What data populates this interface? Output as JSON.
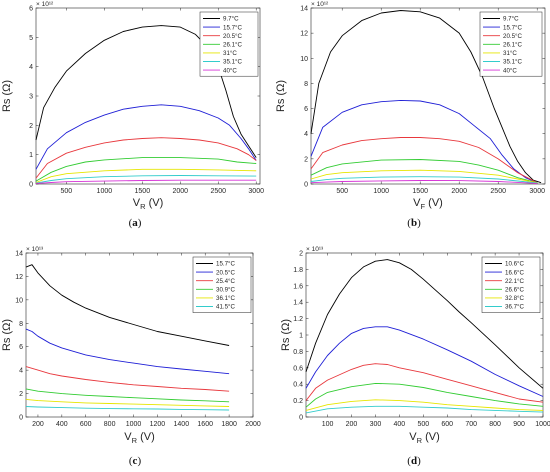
{
  "chart_data": [
    {
      "panel": "a",
      "type": "line",
      "caption": "(a)",
      "title": "",
      "xlabel": "V",
      "xlabel_sub": "R",
      "xlabel_unit": " (V)",
      "ylabel": "Rs (Ω)",
      "y_multiplier": "× 10¹²",
      "xlim": [
        100,
        3050
      ],
      "ylim": [
        0,
        6
      ],
      "xticks": [
        500,
        1000,
        1500,
        2000,
        2500,
        3000
      ],
      "yticks": [
        0,
        1,
        2,
        3,
        4,
        5,
        6
      ],
      "grid": false,
      "legend_position": "top-right",
      "series": [
        {
          "name": "9.7°C",
          "color": "#000000",
          "x": [
            100,
            200,
            350,
            500,
            750,
            1000,
            1250,
            1500,
            1750,
            2000,
            2200,
            2350,
            2500,
            2600,
            2700,
            2800,
            2900,
            3000
          ],
          "y": [
            1.5,
            2.6,
            3.3,
            3.85,
            4.45,
            4.9,
            5.2,
            5.35,
            5.4,
            5.35,
            5.1,
            4.7,
            4.0,
            3.2,
            2.3,
            1.7,
            1.3,
            0.9
          ]
        },
        {
          "name": "15.7°C",
          "color": "#1f1fd6",
          "x": [
            100,
            250,
            500,
            750,
            1000,
            1250,
            1500,
            1750,
            2000,
            2250,
            2500,
            2650,
            2800,
            2900,
            3000
          ],
          "y": [
            0.5,
            1.2,
            1.75,
            2.1,
            2.35,
            2.55,
            2.65,
            2.7,
            2.65,
            2.5,
            2.25,
            2.0,
            1.55,
            1.2,
            0.8
          ]
        },
        {
          "name": "20.5°C",
          "color": "#e8383d",
          "x": [
            100,
            250,
            500,
            750,
            1000,
            1250,
            1500,
            1750,
            2000,
            2250,
            2500,
            2750,
            2900,
            3000
          ],
          "y": [
            0.2,
            0.7,
            1.05,
            1.25,
            1.4,
            1.5,
            1.55,
            1.58,
            1.55,
            1.5,
            1.4,
            1.2,
            1.0,
            0.8
          ]
        },
        {
          "name": "26.1°C",
          "color": "#33cc33",
          "x": [
            100,
            300,
            500,
            750,
            1000,
            1500,
            2000,
            2500,
            2750,
            3000
          ],
          "y": [
            0.1,
            0.4,
            0.6,
            0.75,
            0.82,
            0.9,
            0.9,
            0.85,
            0.75,
            0.7
          ]
        },
        {
          "name": "31°C",
          "color": "#e6e600",
          "x": [
            100,
            300,
            500,
            1000,
            1500,
            2000,
            2500,
            3000
          ],
          "y": [
            0.05,
            0.25,
            0.35,
            0.45,
            0.5,
            0.5,
            0.48,
            0.45
          ]
        },
        {
          "name": "35.1°C",
          "color": "#33cccc",
          "x": [
            100,
            300,
            500,
            1000,
            1500,
            2000,
            2500,
            3000
          ],
          "y": [
            0.03,
            0.12,
            0.18,
            0.25,
            0.28,
            0.29,
            0.28,
            0.27
          ]
        },
        {
          "name": "40°C",
          "color": "#d633d6",
          "x": [
            100,
            300,
            500,
            1000,
            1500,
            2000,
            2500,
            3000
          ],
          "y": [
            0.02,
            0.05,
            0.08,
            0.1,
            0.12,
            0.13,
            0.13,
            0.13
          ]
        }
      ]
    },
    {
      "panel": "b",
      "type": "line",
      "caption": "(b)",
      "title": "",
      "xlabel": "V",
      "xlabel_sub": "F",
      "xlabel_unit": " (V)",
      "ylabel": "Rs (Ω)",
      "y_multiplier": "× 10¹²",
      "xlim": [
        100,
        3100
      ],
      "ylim": [
        0,
        14
      ],
      "xticks": [
        500,
        1000,
        1500,
        2000,
        2500,
        3000
      ],
      "yticks": [
        0,
        2,
        4,
        6,
        8,
        10,
        12,
        14
      ],
      "grid": false,
      "legend_position": "top-right",
      "series": [
        {
          "name": "9.7°C",
          "color": "#000000",
          "x": [
            100,
            200,
            350,
            500,
            750,
            1000,
            1250,
            1500,
            1750,
            2000,
            2150,
            2300,
            2450,
            2550,
            2650,
            2750,
            2850,
            2950,
            3050
          ],
          "y": [
            4.0,
            8.0,
            10.5,
            11.8,
            13.0,
            13.6,
            13.8,
            13.7,
            13.2,
            12.0,
            10.5,
            8.5,
            6.0,
            4.5,
            3.0,
            1.8,
            0.9,
            0.3,
            0.1
          ]
        },
        {
          "name": "15.7°C",
          "color": "#1f1fd6",
          "x": [
            100,
            250,
            500,
            750,
            1000,
            1250,
            1500,
            1750,
            2000,
            2200,
            2400,
            2550,
            2700,
            2850,
            3000
          ],
          "y": [
            2.2,
            4.5,
            5.7,
            6.3,
            6.55,
            6.65,
            6.6,
            6.3,
            5.6,
            4.6,
            3.6,
            2.3,
            1.2,
            0.5,
            0.1
          ]
        },
        {
          "name": "20.5°C",
          "color": "#e8383d",
          "x": [
            100,
            250,
            500,
            750,
            1000,
            1250,
            1500,
            1750,
            2000,
            2250,
            2500,
            2750,
            3000
          ],
          "y": [
            1.2,
            2.5,
            3.1,
            3.45,
            3.6,
            3.7,
            3.7,
            3.6,
            3.4,
            2.9,
            2.0,
            0.9,
            0.1
          ]
        },
        {
          "name": "26.1°C",
          "color": "#33cc33",
          "x": [
            100,
            300,
            500,
            1000,
            1500,
            2000,
            2250,
            2500,
            2750,
            3000
          ],
          "y": [
            0.7,
            1.3,
            1.6,
            1.9,
            1.95,
            1.8,
            1.5,
            1.1,
            0.5,
            0.1
          ]
        },
        {
          "name": "31°C",
          "color": "#e6e600",
          "x": [
            100,
            300,
            500,
            1000,
            1500,
            2000,
            2500,
            2750,
            3000
          ],
          "y": [
            0.4,
            0.75,
            0.9,
            1.05,
            1.1,
            1.0,
            0.7,
            0.4,
            0.1
          ]
        },
        {
          "name": "35.1°C",
          "color": "#33cccc",
          "x": [
            100,
            300,
            500,
            1000,
            1500,
            2000,
            2500,
            3000
          ],
          "y": [
            0.2,
            0.35,
            0.45,
            0.55,
            0.58,
            0.55,
            0.4,
            0.08
          ]
        },
        {
          "name": "40°C",
          "color": "#d633d6",
          "x": [
            100,
            300,
            500,
            1000,
            1500,
            2000,
            2500,
            3000
          ],
          "y": [
            0.1,
            0.15,
            0.2,
            0.25,
            0.28,
            0.27,
            0.2,
            0.05
          ]
        }
      ]
    },
    {
      "panel": "c",
      "type": "line",
      "caption": "(c)",
      "title": "",
      "xlabel": "V",
      "xlabel_sub": "R",
      "xlabel_unit": " (V)",
      "ylabel": "Rs (Ω)",
      "y_multiplier": "× 10¹³",
      "xlim": [
        100,
        2000
      ],
      "ylim": [
        0,
        14
      ],
      "xticks": [
        200,
        400,
        600,
        800,
        1000,
        1200,
        1400,
        1600,
        1800,
        2000
      ],
      "yticks": [
        0,
        2,
        4,
        6,
        8,
        10,
        12,
        14
      ],
      "grid": false,
      "legend_position": "top-right",
      "series": [
        {
          "name": "15.7°C",
          "color": "#000000",
          "x": [
            100,
            150,
            200,
            300,
            400,
            500,
            600,
            800,
            1000,
            1200,
            1400,
            1600,
            1800
          ],
          "y": [
            12.8,
            13.0,
            12.3,
            11.2,
            10.4,
            9.8,
            9.3,
            8.5,
            7.9,
            7.3,
            6.9,
            6.5,
            6.1
          ]
        },
        {
          "name": "20.5°C",
          "color": "#1f1fd6",
          "x": [
            100,
            150,
            200,
            300,
            400,
            600,
            800,
            1000,
            1200,
            1400,
            1600,
            1800
          ],
          "y": [
            7.5,
            7.3,
            6.9,
            6.3,
            5.9,
            5.3,
            4.9,
            4.6,
            4.3,
            4.1,
            3.9,
            3.7
          ]
        },
        {
          "name": "25.4°C",
          "color": "#e8383d",
          "x": [
            100,
            200,
            300,
            400,
            600,
            800,
            1000,
            1200,
            1400,
            1600,
            1800
          ],
          "y": [
            4.3,
            4.0,
            3.7,
            3.5,
            3.2,
            2.95,
            2.75,
            2.6,
            2.45,
            2.35,
            2.2
          ]
        },
        {
          "name": "30.9°C",
          "color": "#33cc33",
          "x": [
            100,
            200,
            400,
            600,
            800,
            1000,
            1200,
            1400,
            1600,
            1800
          ],
          "y": [
            2.4,
            2.2,
            2.0,
            1.85,
            1.75,
            1.65,
            1.55,
            1.45,
            1.38,
            1.3
          ]
        },
        {
          "name": "36.1°C",
          "color": "#e6e600",
          "x": [
            100,
            200,
            400,
            600,
            800,
            1000,
            1200,
            1400,
            1600,
            1800
          ],
          "y": [
            1.5,
            1.4,
            1.3,
            1.2,
            1.15,
            1.1,
            1.05,
            1.0,
            0.95,
            0.9
          ]
        },
        {
          "name": "41.5°C",
          "color": "#33cccc",
          "x": [
            100,
            200,
            400,
            600,
            800,
            1000,
            1200,
            1400,
            1600,
            1800
          ],
          "y": [
            0.9,
            0.85,
            0.8,
            0.75,
            0.72,
            0.7,
            0.68,
            0.65,
            0.62,
            0.6
          ]
        }
      ]
    },
    {
      "panel": "d",
      "type": "line",
      "caption": "(d)",
      "title": "",
      "xlabel": "V",
      "xlabel_sub": "R",
      "xlabel_unit": " (V)",
      "ylabel": "Rs (Ω)",
      "y_multiplier": "× 10¹³",
      "xlim": [
        10,
        1000
      ],
      "ylim": [
        0,
        2
      ],
      "xticks": [
        100,
        200,
        300,
        400,
        500,
        600,
        700,
        800,
        900,
        1000
      ],
      "yticks": [
        0,
        0.2,
        0.4,
        0.6,
        0.8,
        1,
        1.2,
        1.4,
        1.6,
        1.8,
        2
      ],
      "grid": false,
      "legend_position": "top-right",
      "series": [
        {
          "name": "10.6°C",
          "color": "#000000",
          "x": [
            10,
            50,
            100,
            150,
            200,
            250,
            300,
            350,
            400,
            450,
            500,
            550,
            600,
            650,
            700,
            800,
            900,
            1000
          ],
          "y": [
            0.55,
            0.9,
            1.25,
            1.5,
            1.7,
            1.83,
            1.9,
            1.92,
            1.88,
            1.8,
            1.68,
            1.55,
            1.42,
            1.28,
            1.15,
            0.88,
            0.6,
            0.35
          ]
        },
        {
          "name": "16.6°C",
          "color": "#1f1fd6",
          "x": [
            10,
            50,
            100,
            150,
            200,
            250,
            300,
            350,
            400,
            500,
            600,
            700,
            800,
            900,
            1000
          ],
          "y": [
            0.35,
            0.55,
            0.75,
            0.9,
            1.02,
            1.08,
            1.1,
            1.1,
            1.06,
            0.95,
            0.82,
            0.68,
            0.52,
            0.38,
            0.25
          ]
        },
        {
          "name": "22.1°C",
          "color": "#e8383d",
          "x": [
            10,
            50,
            100,
            200,
            250,
            300,
            350,
            400,
            500,
            600,
            700,
            800,
            900,
            1000
          ],
          "y": [
            0.2,
            0.35,
            0.45,
            0.58,
            0.63,
            0.65,
            0.64,
            0.6,
            0.54,
            0.46,
            0.38,
            0.3,
            0.22,
            0.18
          ]
        },
        {
          "name": "26.6°C",
          "color": "#33cc33",
          "x": [
            10,
            50,
            100,
            200,
            300,
            400,
            500,
            600,
            700,
            800,
            900,
            1000
          ],
          "y": [
            0.12,
            0.22,
            0.3,
            0.37,
            0.41,
            0.4,
            0.36,
            0.3,
            0.25,
            0.2,
            0.16,
            0.13
          ]
        },
        {
          "name": "32.8°C",
          "color": "#e6e600",
          "x": [
            10,
            100,
            200,
            300,
            400,
            500,
            600,
            700,
            800,
            900,
            1000
          ],
          "y": [
            0.08,
            0.15,
            0.19,
            0.21,
            0.2,
            0.18,
            0.15,
            0.13,
            0.11,
            0.09,
            0.08
          ]
        },
        {
          "name": "36.7°C",
          "color": "#33cccc",
          "x": [
            10,
            100,
            200,
            300,
            400,
            500,
            600,
            700,
            800,
            900,
            1000
          ],
          "y": [
            0.05,
            0.1,
            0.12,
            0.13,
            0.13,
            0.12,
            0.11,
            0.09,
            0.08,
            0.07,
            0.06
          ]
        }
      ]
    }
  ]
}
